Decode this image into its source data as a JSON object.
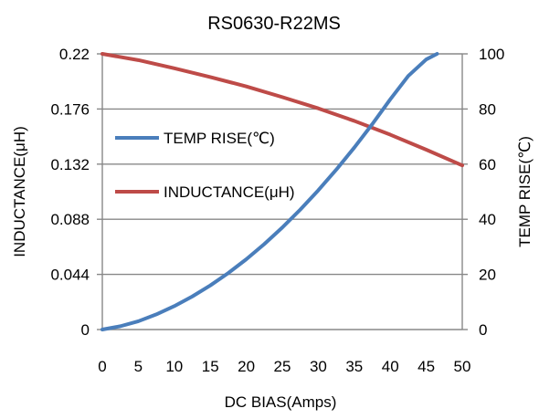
{
  "chart_data": {
    "type": "line",
    "title": "RS0630-R22MS",
    "xlabel": "DC  BIAS(Amps)",
    "ylabel_left": "INDUCTANCE(μH)",
    "ylabel_right": "TEMP RISE(℃)",
    "x_ticks": [
      "0",
      "5",
      "10",
      "15",
      "20",
      "25",
      "30",
      "35",
      "40",
      "45",
      "50"
    ],
    "y_left_ticks": [
      "0",
      "0.044",
      "0.088",
      "0.132",
      "0.176",
      "0.22"
    ],
    "y_right_ticks": [
      "0",
      "20",
      "40",
      "60",
      "80",
      "100"
    ],
    "xlim": [
      0,
      50
    ],
    "ylim_left": [
      0,
      0.22
    ],
    "ylim_right": [
      0,
      100
    ],
    "grid": "horizontal",
    "legend_position": "upper-left inside plot",
    "series": [
      {
        "name": "TEMP RISE(℃)",
        "axis": "right",
        "color": "#4a7ebb",
        "x": [
          0,
          2.5,
          5,
          7.5,
          10,
          12.5,
          15,
          17.5,
          20,
          22.5,
          25,
          27.5,
          30,
          32.5,
          35,
          37.5,
          40,
          42.5,
          45,
          46.5
        ],
        "y": [
          0,
          1.2,
          3,
          5.5,
          8.5,
          12,
          16,
          20.5,
          25.5,
          31,
          37,
          43.5,
          50.5,
          58,
          66,
          74.5,
          83.5,
          92,
          98,
          100
        ]
      },
      {
        "name": "INDUCTANCE(μH)",
        "axis": "left",
        "color": "#be4b48",
        "x": [
          0,
          5,
          10,
          15,
          20,
          25,
          30,
          35,
          40,
          45,
          50
        ],
        "y": [
          0.22,
          0.215,
          0.2085,
          0.2015,
          0.194,
          0.1855,
          0.1765,
          0.1665,
          0.1555,
          0.1435,
          0.131
        ]
      }
    ]
  }
}
